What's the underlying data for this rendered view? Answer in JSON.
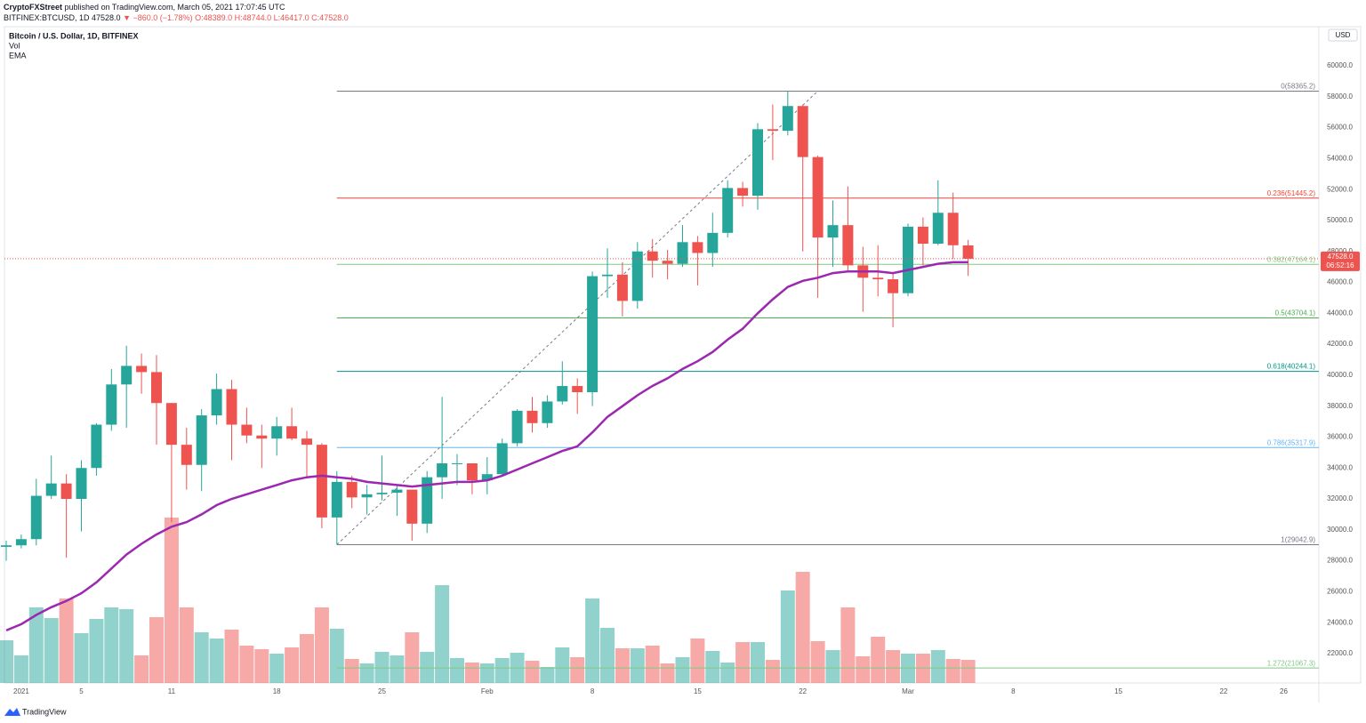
{
  "header": {
    "author": "CryptoFXStreet",
    "published": "published on TradingView.com, March 05, 2021 17:07:45 UTC",
    "symbol": "BITFINEX:BTCUSD, 1D",
    "last": "47528.0",
    "change": "▼ −860.0 (−1.78%)",
    "ohlc": "O:48389.0 H:48744.0 L:46417.0 C:47528.0"
  },
  "chart_data": {
    "type": "candlestick",
    "title": "Bitcoin / U.S. Dollar, 1D, BITFINEX",
    "indicators": [
      "Vol",
      "EMA"
    ],
    "currency": "USD",
    "categories": [
      null,
      "2021",
      null,
      null,
      null,
      "5",
      null,
      null,
      null,
      null,
      null,
      "11",
      null,
      null,
      null,
      null,
      null,
      null,
      "18",
      null,
      null,
      null,
      null,
      null,
      null,
      "25",
      null,
      null,
      null,
      null,
      null,
      null,
      "Feb",
      null,
      null,
      null,
      null,
      null,
      null,
      "8",
      null,
      null,
      null,
      null,
      null,
      null,
      "15",
      null,
      null,
      null,
      null,
      null,
      null,
      "22",
      null,
      null,
      null,
      null,
      null,
      null,
      "Mar",
      null,
      null,
      null,
      null,
      null,
      null,
      "8",
      null,
      null,
      null,
      null,
      null,
      null,
      "15",
      null,
      null,
      null,
      null,
      null,
      null,
      "22",
      null,
      null,
      null,
      "26",
      null,
      null
    ],
    "open": [
      28900,
      29000,
      29400,
      32200,
      33000,
      32000,
      34000,
      36800,
      39400,
      40600,
      40200,
      38200,
      35500,
      34200,
      37400,
      39100,
      36800,
      36100,
      35900,
      36700,
      35900,
      35500,
      30800,
      33100,
      32100,
      32300,
      32400,
      32600,
      30400,
      33400,
      34300,
      34300,
      33200,
      33600,
      35600,
      37700,
      36900,
      38300,
      39300,
      38900,
      46400,
      46500,
      44800,
      48000,
      47400,
      47200,
      48600,
      47900,
      49200,
      52100,
      51600,
      55900,
      55800,
      57400,
      54100,
      48900,
      49700,
      47100,
      46300,
      46200,
      45300,
      49600,
      48500,
      50500,
      48389,
      null,
      null,
      null,
      null,
      null,
      null,
      null,
      null,
      null,
      null,
      null,
      null,
      null,
      null,
      null,
      null,
      null,
      null,
      null,
      null,
      null,
      null,
      null
    ],
    "high": [
      29300,
      29700,
      33300,
      34800,
      33600,
      34500,
      36900,
      40400,
      41900,
      41400,
      41300,
      38200,
      36600,
      37800,
      40100,
      39700,
      37900,
      36800,
      37300,
      37900,
      36400,
      35600,
      33800,
      33500,
      32900,
      34800,
      32900,
      32600,
      33800,
      38600,
      34900,
      34300,
      34700,
      35900,
      37800,
      38600,
      38700,
      40900,
      39800,
      46700,
      48200,
      47300,
      48600,
      48800,
      48100,
      49700,
      49000,
      50500,
      52600,
      52500,
      56300,
      57500,
      58365.2,
      57500,
      54200,
      51300,
      52200,
      48300,
      48400,
      46600,
      49800,
      50200,
      52600,
      51800,
      48744,
      null,
      null,
      null,
      null,
      null,
      null,
      null,
      null,
      null,
      null,
      null,
      null,
      null,
      null,
      null,
      null,
      null,
      null,
      null,
      null,
      null,
      null,
      null
    ],
    "low": [
      28000,
      28800,
      29000,
      32000,
      28200,
      29900,
      33500,
      36400,
      36600,
      38800,
      35500,
      30500,
      32600,
      32500,
      36800,
      34500,
      35600,
      34000,
      34800,
      35800,
      33400,
      30100,
      29042.9,
      31400,
      31000,
      31900,
      30900,
      29300,
      29800,
      32000,
      32900,
      32300,
      32300,
      33500,
      35400,
      36300,
      36600,
      38100,
      37500,
      38000,
      45000,
      43800,
      44300,
      46300,
      46200,
      47000,
      45800,
      47000,
      48900,
      50900,
      50700,
      53900,
      55500,
      48000,
      45000,
      47000,
      46700,
      44100,
      45100,
      43100,
      45100,
      47100,
      48400,
      47500,
      46417,
      null,
      null,
      null,
      null,
      null,
      null,
      null,
      null,
      null,
      null,
      null,
      null,
      null,
      null,
      null,
      null,
      null,
      null,
      null,
      null,
      null,
      null,
      null
    ],
    "close": [
      29000,
      29400,
      32200,
      33000,
      32000,
      34000,
      36800,
      39400,
      40600,
      40200,
      38200,
      35500,
      34200,
      37400,
      39100,
      36800,
      36100,
      35900,
      36700,
      35900,
      35500,
      30800,
      33100,
      32100,
      32300,
      32400,
      32600,
      30400,
      33400,
      34300,
      34300,
      33200,
      33600,
      35600,
      37700,
      36900,
      38300,
      39300,
      38900,
      46400,
      46500,
      44800,
      48000,
      47400,
      47200,
      48600,
      47900,
      49200,
      52100,
      51600,
      55900,
      55800,
      57400,
      54100,
      48900,
      49700,
      47100,
      46300,
      46200,
      45300,
      49600,
      48500,
      50500,
      48400,
      47528,
      null,
      null,
      null,
      null,
      null,
      null,
      null,
      null,
      null,
      null,
      null,
      null,
      null,
      null,
      null,
      null,
      null,
      null,
      null,
      null,
      null,
      null,
      null
    ],
    "volume": [
      48,
      31,
      85,
      73,
      95,
      56,
      72,
      85,
      83,
      31,
      74,
      186,
      85,
      57,
      50,
      60,
      42,
      38,
      33,
      40,
      55,
      85,
      61,
      27,
      22,
      35,
      31,
      57,
      35,
      110,
      28,
      23,
      22,
      28,
      34,
      25,
      18,
      40,
      29,
      95,
      62,
      39,
      39,
      42,
      22,
      29,
      50,
      36,
      23,
      46,
      46,
      26,
      104,
      125,
      47,
      37,
      85,
      30,
      52,
      37,
      33,
      33,
      37,
      27,
      26,
      null,
      null,
      null,
      null,
      null,
      null,
      null,
      null,
      null,
      null,
      null,
      null,
      null,
      null,
      null,
      null,
      null,
      null,
      null,
      null,
      null,
      null,
      null
    ],
    "ema": {
      "color": "#9c27b0",
      "values": [
        23500,
        23900,
        24500,
        25000,
        25400,
        25900,
        26600,
        27500,
        28400,
        29100,
        29700,
        30200,
        30500,
        31000,
        31600,
        32000,
        32300,
        32600,
        32900,
        33200,
        33400,
        33500,
        33400,
        33300,
        33100,
        33000,
        32900,
        32800,
        32900,
        33000,
        33100,
        33100,
        33200,
        33500,
        33900,
        34300,
        34700,
        35100,
        35400,
        36300,
        37300,
        38000,
        38700,
        39300,
        39800,
        40400,
        40900,
        41500,
        42300,
        43000,
        44000,
        44900,
        45700,
        46100,
        46300,
        46600,
        46700,
        46700,
        46700,
        46600,
        46800,
        47000,
        47200,
        47300,
        47300,
        null,
        null,
        null,
        null,
        null,
        null,
        null,
        null,
        null,
        null,
        null,
        null,
        null,
        null,
        null,
        null,
        null,
        null,
        null,
        null,
        null,
        null,
        null
      ]
    },
    "up_color": "#26a69a",
    "down_color": "#ef5350",
    "ylim": [
      20100,
      62530
    ],
    "yticks": [
      {
        "value": 22000,
        "label": "22000.0"
      },
      {
        "value": 24000,
        "label": "24000.0"
      },
      {
        "value": 26000,
        "label": "26000.0"
      },
      {
        "value": 28000,
        "label": "28000.0"
      },
      {
        "value": 30000,
        "label": "30000.0"
      },
      {
        "value": 32000,
        "label": "32000.0"
      },
      {
        "value": 34000,
        "label": "34000.0"
      },
      {
        "value": 36000,
        "label": "36000.0"
      },
      {
        "value": 38000,
        "label": "38000.0"
      },
      {
        "value": 40000,
        "label": "40000.0"
      },
      {
        "value": 42000,
        "label": "42000.0"
      },
      {
        "value": 44000,
        "label": "44000.0"
      },
      {
        "value": 46000,
        "label": "46000.0"
      },
      {
        "value": 48000,
        "label": "48000.0"
      },
      {
        "value": 50000,
        "label": "50000.0"
      },
      {
        "value": 52000,
        "label": "52000.0"
      },
      {
        "value": 54000,
        "label": "54000.0"
      },
      {
        "value": 56000,
        "label": "56000.0"
      },
      {
        "value": 58000,
        "label": "58000.0"
      },
      {
        "value": 60000,
        "label": "60000.0"
      }
    ],
    "last_price": {
      "value": 47528,
      "label": "47528.0",
      "countdown": "06:52:16"
    },
    "fib_levels": [
      {
        "value": 58365.2,
        "label": "0(58365.2)",
        "color": "#787b86"
      },
      {
        "value": 51445.2,
        "label": "0.236(51445.2)",
        "color": "#f44336"
      },
      {
        "value": 47164.1,
        "label": "0.382(47164.1)",
        "color": "#81c784"
      },
      {
        "value": 43704.1,
        "label": "0.5(43704.1)",
        "color": "#4caf50"
      },
      {
        "value": 40244.1,
        "label": "0.618(40244.1)",
        "color": "#009688"
      },
      {
        "value": 35317.9,
        "label": "0.786(35317.9)",
        "color": "#64b5f6"
      },
      {
        "value": 29042.9,
        "label": "1(29042.9)",
        "color": "#787b86"
      },
      {
        "value": 21067.3,
        "label": "1.272(21067.3)",
        "color": "#81c784"
      }
    ]
  },
  "footer": {
    "brand": "TradingView"
  }
}
